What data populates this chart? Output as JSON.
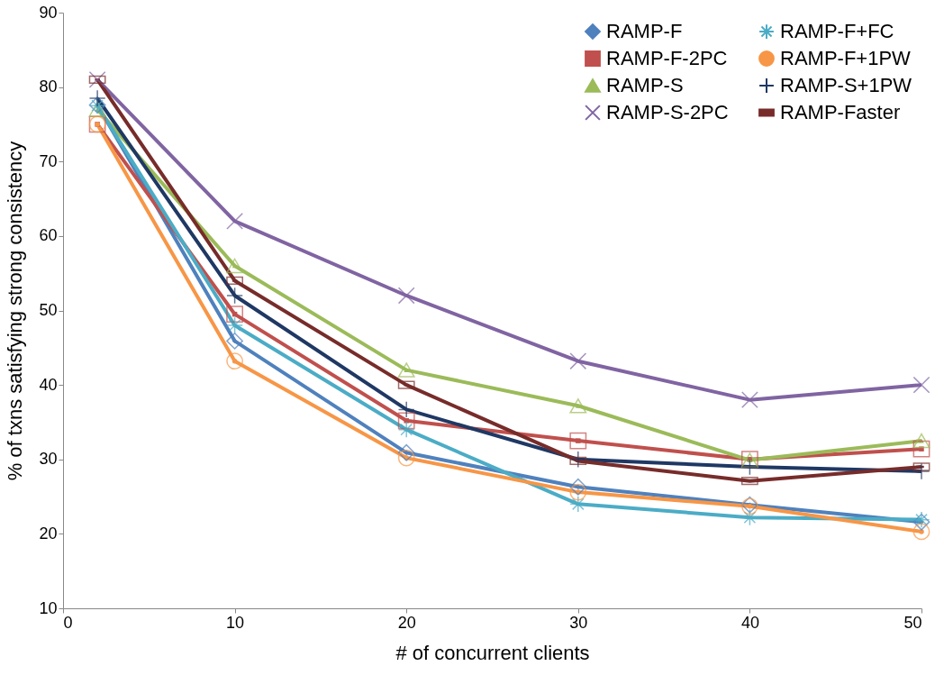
{
  "chart_data": {
    "type": "line",
    "xlabel": "# of concurrent clients",
    "ylabel": "% of txns satisfying strong consistency",
    "x": [
      2,
      10,
      20,
      30,
      40,
      50
    ],
    "xlim": [
      0,
      50
    ],
    "xticks": [
      0,
      10,
      20,
      30,
      40,
      50
    ],
    "ylim": [
      10,
      90
    ],
    "yticks": [
      10,
      20,
      30,
      40,
      50,
      60,
      70,
      80,
      90
    ],
    "grid": false,
    "legend": "top right",
    "series": [
      {
        "name": "RAMP-F",
        "color": "#4f81bd",
        "marker": "diamond",
        "values": [
          77.6,
          45.9,
          30.9,
          26.3,
          23.9,
          21.6
        ]
      },
      {
        "name": "RAMP-F-2PC",
        "color": "#c0504d",
        "marker": "square",
        "values": [
          75,
          49.5,
          35.2,
          32.5,
          30,
          31.4
        ]
      },
      {
        "name": "RAMP-S",
        "color": "#9bbb59",
        "marker": "triangle",
        "values": [
          77,
          56,
          42,
          37.2,
          29.9,
          32.5
        ]
      },
      {
        "name": "RAMP-S-2PC",
        "color": "#8064a2",
        "marker": "cross",
        "values": [
          81,
          62,
          52,
          43.2,
          38,
          40
        ]
      },
      {
        "name": "RAMP-F+FC",
        "color": "#4bacc6",
        "marker": "cross",
        "values": [
          77.5,
          48,
          34,
          24,
          22.2,
          21.9
        ]
      },
      {
        "name": "RAMP-F+1PW",
        "color": "#f79646",
        "marker": "circle",
        "values": [
          75,
          43.2,
          30.2,
          25.6,
          23.7,
          20.3
        ]
      },
      {
        "name": "RAMP-S+1PW",
        "color": "#1f3864",
        "marker": "cross",
        "values": [
          78.5,
          52,
          36.7,
          30,
          29,
          28.4
        ]
      },
      {
        "name": "RAMP-Faster",
        "color": "#772c2a",
        "marker": "square",
        "values": [
          81,
          54,
          40,
          29.8,
          27.1,
          29
        ]
      }
    ]
  }
}
